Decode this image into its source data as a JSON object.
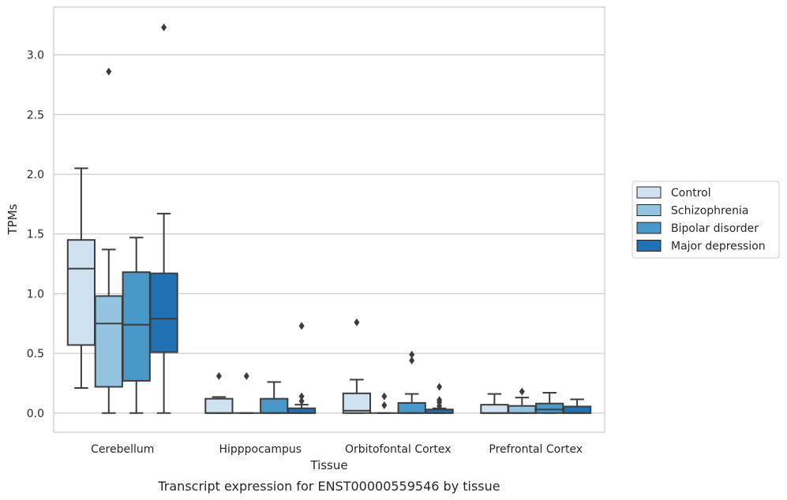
{
  "chart_data": {
    "type": "boxplot",
    "xlabel": "Tissue",
    "ylabel": "TPMs",
    "caption": "Transcript expression for ENST00000559546 by tissue",
    "ylim": [
      -0.16,
      3.4
    ],
    "yticks": [
      "0.0",
      "0.5",
      "1.0",
      "1.5",
      "2.0",
      "2.5",
      "3.0"
    ],
    "grid": "horizontal",
    "legend_position": "right",
    "categories": [
      "Cerebellum",
      "Hipppocampus",
      "Orbitofontal Cortex",
      "Prefrontal Cortex"
    ],
    "series": [
      {
        "name": "Control",
        "color": "#d0e1f2",
        "boxes": [
          {
            "whislo": 0.21,
            "q1": 0.57,
            "med": 1.21,
            "q3": 1.45,
            "whishi": 2.05,
            "fliers": []
          },
          {
            "whislo": 0.0,
            "q1": 0.0,
            "med": 0.0,
            "q3": 0.12,
            "whishi": 0.135,
            "fliers": [
              0.31
            ]
          },
          {
            "whislo": 0.0,
            "q1": 0.0,
            "med": 0.02,
            "q3": 0.165,
            "whishi": 0.28,
            "fliers": [
              0.76
            ]
          },
          {
            "whislo": 0.0,
            "q1": 0.0,
            "med": 0.0,
            "q3": 0.07,
            "whishi": 0.16,
            "fliers": []
          }
        ]
      },
      {
        "name": "Schizophrenia",
        "color": "#94c4df",
        "boxes": [
          {
            "whislo": 0.0,
            "q1": 0.22,
            "med": 0.75,
            "q3": 0.98,
            "whishi": 1.37,
            "fliers": [
              2.86
            ]
          },
          {
            "whislo": 0.0,
            "q1": 0.0,
            "med": 0.0,
            "q3": 0.0,
            "whishi": 0.0,
            "fliers": [
              0.31
            ]
          },
          {
            "whislo": 0.0,
            "q1": 0.0,
            "med": 0.0,
            "q3": 0.0,
            "whishi": 0.0,
            "fliers": [
              0.065,
              0.14
            ]
          },
          {
            "whislo": 0.0,
            "q1": 0.0,
            "med": 0.0,
            "q3": 0.06,
            "whishi": 0.13,
            "fliers": [
              0.18
            ]
          }
        ]
      },
      {
        "name": "Bipolar disorder",
        "color": "#4a98c9",
        "boxes": [
          {
            "whislo": 0.0,
            "q1": 0.27,
            "med": 0.74,
            "q3": 1.18,
            "whishi": 1.47,
            "fliers": []
          },
          {
            "whislo": 0.0,
            "q1": 0.0,
            "med": 0.0,
            "q3": 0.12,
            "whishi": 0.26,
            "fliers": []
          },
          {
            "whislo": 0.0,
            "q1": 0.0,
            "med": 0.0,
            "q3": 0.085,
            "whishi": 0.16,
            "fliers": [
              0.44,
              0.49
            ]
          },
          {
            "whislo": 0.0,
            "q1": 0.0,
            "med": 0.03,
            "q3": 0.08,
            "whishi": 0.17,
            "fliers": []
          }
        ]
      },
      {
        "name": "Major depression",
        "color": "#2171b5",
        "boxes": [
          {
            "whislo": 0.0,
            "q1": 0.51,
            "med": 0.79,
            "q3": 1.17,
            "whishi": 1.67,
            "fliers": [
              3.23
            ]
          },
          {
            "whislo": 0.0,
            "q1": 0.0,
            "med": 0.0,
            "q3": 0.04,
            "whishi": 0.07,
            "fliers": [
              0.1,
              0.14,
              0.73
            ]
          },
          {
            "whislo": 0.0,
            "q1": 0.0,
            "med": 0.0,
            "q3": 0.03,
            "whishi": 0.04,
            "fliers": [
              0.06,
              0.09,
              0.11,
              0.22
            ]
          },
          {
            "whislo": 0.0,
            "q1": 0.0,
            "med": 0.0,
            "q3": 0.055,
            "whishi": 0.115,
            "fliers": []
          }
        ]
      }
    ]
  }
}
